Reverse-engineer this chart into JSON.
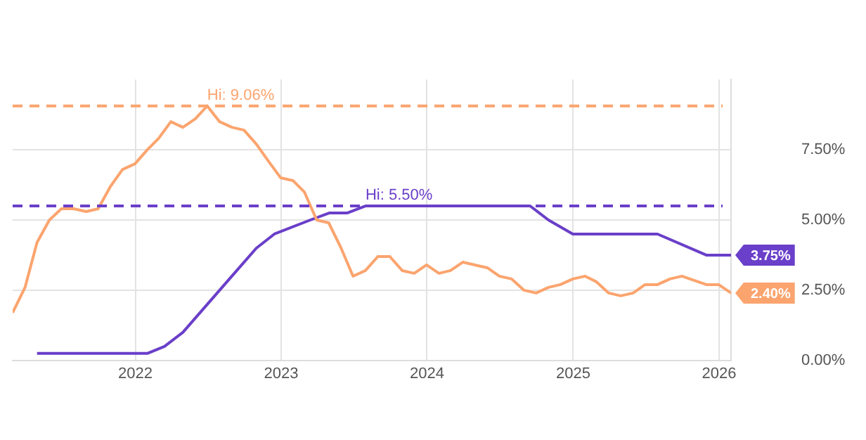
{
  "chart_data": {
    "type": "line",
    "series": [
      {
        "color": "#fba46e",
        "x": [
          "2021-02-28",
          "2021-03-31",
          "2021-04-30",
          "2021-05-31",
          "2021-06-30",
          "2021-07-31",
          "2021-08-31",
          "2021-09-30",
          "2021-10-31",
          "2021-11-30",
          "2021-12-31",
          "2022-01-31",
          "2022-02-28",
          "2022-03-31",
          "2022-04-30",
          "2022-05-31",
          "2022-06-30",
          "2022-07-31",
          "2022-08-31",
          "2022-09-30",
          "2022-10-31",
          "2022-11-30",
          "2022-12-31",
          "2023-01-31",
          "2023-02-28",
          "2023-03-31",
          "2023-04-30",
          "2023-05-31",
          "2023-06-30",
          "2023-07-31",
          "2023-08-31",
          "2023-09-30",
          "2023-10-31",
          "2023-11-30",
          "2023-12-31",
          "2024-01-31",
          "2024-02-29",
          "2024-03-31",
          "2024-04-30",
          "2024-05-31",
          "2024-06-30",
          "2024-07-31",
          "2024-08-31",
          "2024-09-30",
          "2024-10-31",
          "2024-11-30",
          "2024-12-31",
          "2025-01-31",
          "2025-02-28",
          "2025-03-31",
          "2025-04-30",
          "2025-05-31",
          "2025-06-30",
          "2025-07-31",
          "2025-08-31",
          "2025-09-30",
          "2025-11-30",
          "2025-12-31",
          "2026-01-31"
        ],
        "values": [
          1.7,
          2.6,
          4.2,
          5.0,
          5.4,
          5.4,
          5.3,
          5.4,
          6.2,
          6.8,
          7.0,
          7.5,
          7.9,
          8.5,
          8.3,
          8.6,
          9.06,
          8.5,
          8.3,
          8.2,
          7.7,
          7.1,
          6.5,
          6.4,
          6.0,
          5.0,
          4.9,
          4.0,
          3.0,
          3.2,
          3.7,
          3.7,
          3.2,
          3.1,
          3.4,
          3.1,
          3.2,
          3.5,
          3.4,
          3.3,
          3.0,
          2.9,
          2.5,
          2.4,
          2.6,
          2.7,
          2.9,
          3.0,
          2.8,
          2.4,
          2.3,
          2.4,
          2.7,
          2.7,
          2.9,
          3.0,
          2.7,
          2.7,
          2.4
        ]
      },
      {
        "color": "#6a3fc9",
        "x": [
          "2021-04-30",
          "2022-01-31",
          "2022-03-15",
          "2022-04-30",
          "2022-06-15",
          "2022-07-31",
          "2022-09-15",
          "2022-10-31",
          "2022-12-15",
          "2023-03-15",
          "2023-05-01",
          "2023-06-15",
          "2023-07-31",
          "2024-09-15",
          "2024-10-31",
          "2024-12-31",
          "2025-07-31",
          "2025-11-30",
          "2026-01-31"
        ],
        "values": [
          0.25,
          0.25,
          0.5,
          1.0,
          1.75,
          2.5,
          3.25,
          4.0,
          4.5,
          5.0,
          5.25,
          5.25,
          5.5,
          5.5,
          5.0,
          4.5,
          4.5,
          3.75,
          3.75
        ]
      }
    ],
    "xlim": [
      "2021-02-28",
      "2026-01-31"
    ],
    "xticks": [
      "2022",
      "2023",
      "2024",
      "2025",
      "2026"
    ],
    "ylim": [
      0,
      10
    ],
    "yticks": [
      {
        "value": 0,
        "label": "0.00%"
      },
      {
        "value": 2.5,
        "label": "2.50%"
      },
      {
        "value": 5,
        "label": "5.00%"
      },
      {
        "value": 7.5,
        "label": "7.50%"
      }
    ],
    "grid": true,
    "legend": false,
    "marker": "none",
    "line_style": "solid",
    "ref_lines": [
      {
        "axis": "y",
        "value": 9.06,
        "label": "Hi: 9.06%",
        "color": "#fba46e",
        "line_style": "dashed"
      },
      {
        "axis": "y",
        "value": 5.5,
        "label": "Hi: 5.50%",
        "color": "#6a3fc9",
        "line_style": "dashed"
      }
    ],
    "annotations": [
      {
        "text": "3.75%",
        "x": "2026-01-31",
        "y": 3.75
      },
      {
        "text": "2.40%",
        "x": "2026-01-31",
        "y": 2.4
      }
    ]
  }
}
